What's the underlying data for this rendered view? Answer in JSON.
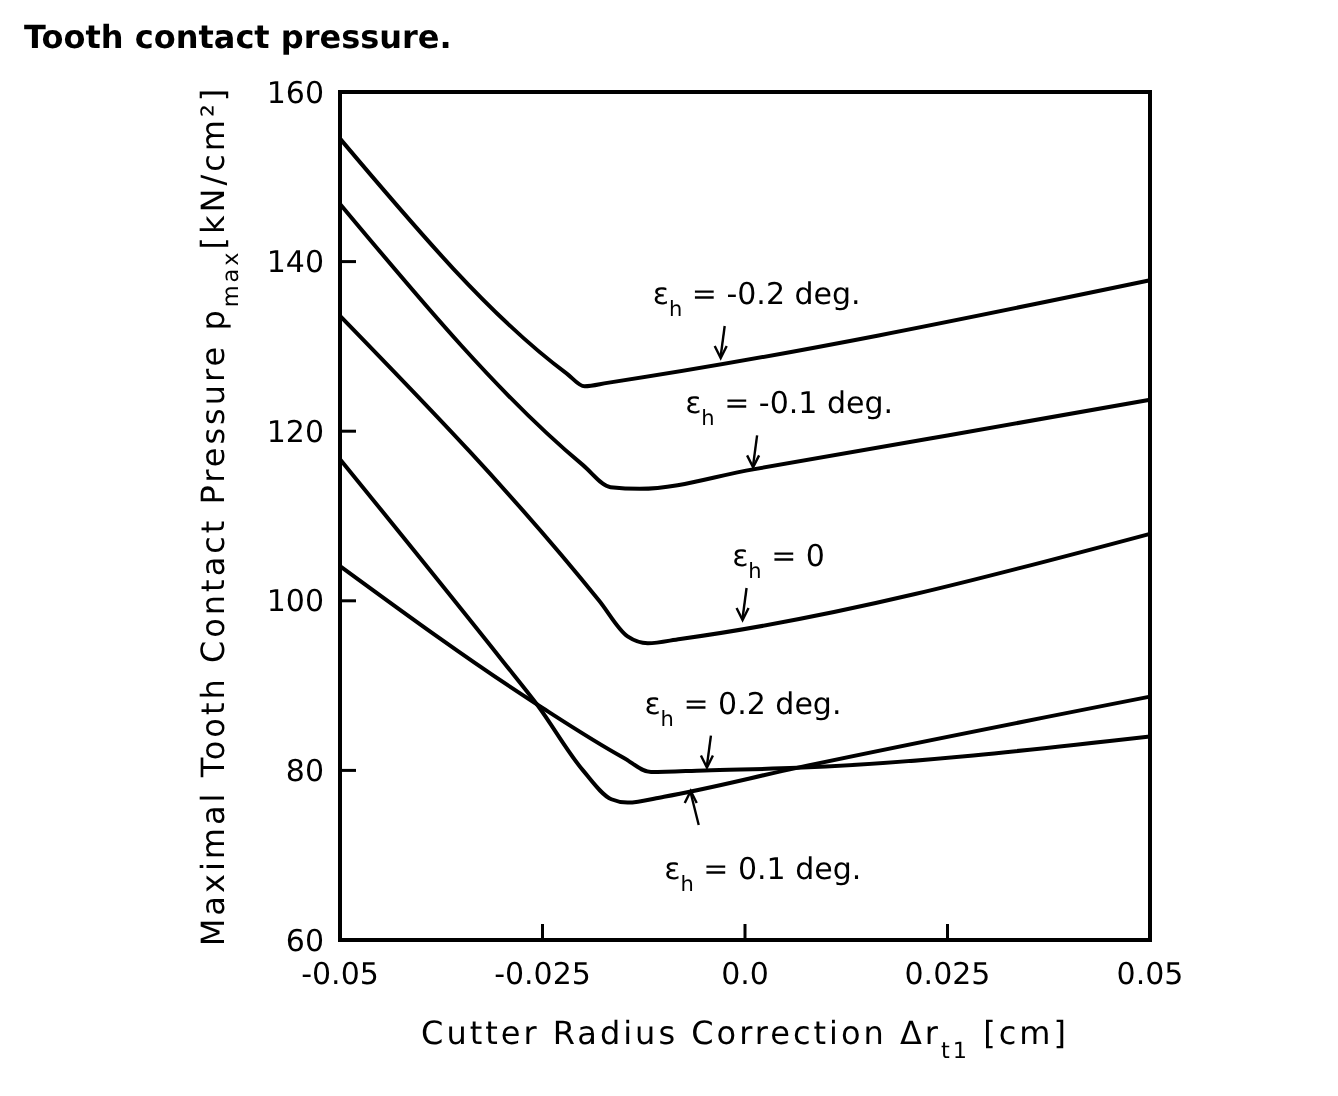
{
  "chart_data": {
    "type": "line",
    "title": "Tooth contact pressure.",
    "xlabel": "Cutter Radius Correction  Δr$_{t1}$ [cm]",
    "ylabel": "Maximal Tooth Contact Pressure p$_{max}$[kN/cm²]",
    "xlim": [
      -0.05,
      0.05
    ],
    "xticks": [
      -0.05,
      -0.025,
      {
        "value": 0,
        "label": "0.0"
      },
      0.025,
      0.05
    ],
    "ylim": [
      60,
      160
    ],
    "yticks": [
      60,
      80,
      100,
      120,
      140,
      160
    ],
    "grid": false,
    "marker": "none",
    "line_style": "solid",
    "series": [
      {
        "color": "#000000",
        "x": [
          -0.05,
          -0.022,
          -0.0198,
          -0.017,
          0.05
        ],
        "values": [
          154.5,
          126.8,
          125.3,
          125.7,
          137.8
        ]
      },
      {
        "color": "#000000",
        "x": [
          -0.05,
          -0.02,
          -0.0166,
          -0.013,
          0.001,
          0.025,
          0.05
        ],
        "values": [
          146.8,
          116,
          113.4,
          113.2,
          115.5,
          119.5,
          123.7
        ]
      },
      {
        "color": "#000000",
        "x": [
          -0.05,
          -0.018,
          -0.0145,
          -0.012,
          -0.008,
          0.05
        ],
        "values": [
          133.6,
          100,
          95.8,
          95,
          95.5,
          107.9
        ]
      },
      {
        "color": "#000000",
        "x": [
          -0.05,
          -0.0257,
          -0.015,
          -0.0116,
          -0.005,
          0.0064,
          0.05
        ],
        "values": [
          104.1,
          87.8,
          81.5,
          79.8,
          80,
          80.3,
          84
        ]
      },
      {
        "color": "#000000",
        "x": [
          -0.05,
          -0.03,
          -0.0257,
          -0.02,
          -0.0165,
          -0.0145,
          -0.01,
          0.0064,
          0.05
        ],
        "values": [
          116.7,
          93,
          87.8,
          80,
          76.6,
          76.2,
          76.9,
          80.3,
          88.7
        ]
      }
    ],
    "annotations": [
      {
        "text": "ε$_{h}$ = -0.2 deg.",
        "x": -0.003,
        "y": 128.4
      },
      {
        "text": "ε$_{h}$ = -0.1 deg.",
        "x": 0.001,
        "y": 115.5
      },
      {
        "text": "ε$_{h}$ = 0",
        "x": -0.0003,
        "y": 97.5
      },
      {
        "text": "ε$_{h}$ = 0.2 deg.",
        "x": -0.0047,
        "y": 80.1
      },
      {
        "text": "ε$_{h}$ = 0.1 deg.",
        "x": -0.0067,
        "y": 77.8
      }
    ]
  }
}
